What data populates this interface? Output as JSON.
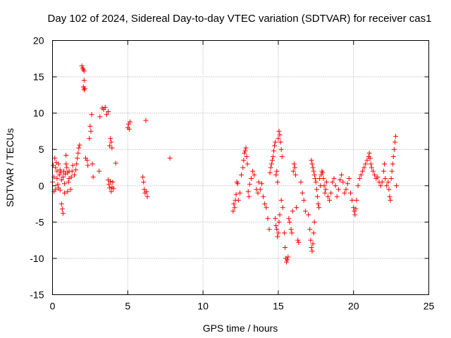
{
  "chart_data": {
    "type": "scatter",
    "title": "Day 102 of 2024, Sidereal Day-to-day VTEC variation (SDTVAR) for receiver cas1",
    "xlabel": "GPS time / hours",
    "ylabel": "SDTVAR / TECUs",
    "xlim": [
      0,
      25
    ],
    "ylim": [
      -15,
      20
    ],
    "xticks": [
      0,
      5,
      10,
      15,
      20,
      25
    ],
    "yticks": [
      -15,
      -10,
      -5,
      0,
      5,
      10,
      15,
      20
    ],
    "grid": true,
    "marker": "+",
    "color": "#ff0000",
    "series": [
      {
        "name": "SDTVAR",
        "points": [
          [
            0.0,
            0.5
          ],
          [
            0.05,
            2.8
          ],
          [
            0.1,
            1.2
          ],
          [
            0.1,
            -0.8
          ],
          [
            0.15,
            3.8
          ],
          [
            0.2,
            2.5
          ],
          [
            0.2,
            -0.5
          ],
          [
            0.25,
            3.2
          ],
          [
            0.3,
            1.0
          ],
          [
            0.3,
            2.0
          ],
          [
            0.35,
            0.2
          ],
          [
            0.4,
            -0.3
          ],
          [
            0.4,
            3.0
          ],
          [
            0.45,
            1.5
          ],
          [
            0.5,
            2.2
          ],
          [
            0.5,
            -0.6
          ],
          [
            0.55,
            1.8
          ],
          [
            0.6,
            0.8
          ],
          [
            0.6,
            -2.5
          ],
          [
            0.65,
            -3.2
          ],
          [
            0.7,
            -3.8
          ],
          [
            0.7,
            1.2
          ],
          [
            0.75,
            2.0
          ],
          [
            0.8,
            -1.0
          ],
          [
            0.8,
            0.3
          ],
          [
            0.85,
            1.6
          ],
          [
            0.9,
            3.0
          ],
          [
            0.9,
            4.2
          ],
          [
            0.95,
            2.5
          ],
          [
            1.0,
            -0.8
          ],
          [
            1.0,
            1.8
          ],
          [
            1.05,
            0.5
          ],
          [
            1.1,
            2.0
          ],
          [
            1.1,
            1.0
          ],
          [
            1.2,
            -0.5
          ],
          [
            1.25,
            1.2
          ],
          [
            1.3,
            2.0
          ],
          [
            1.35,
            2.8
          ],
          [
            1.45,
            1.5
          ],
          [
            1.55,
            2.2
          ],
          [
            1.6,
            3.0
          ],
          [
            1.65,
            3.8
          ],
          [
            1.7,
            4.5
          ],
          [
            1.75,
            5.2
          ],
          [
            1.8,
            5.6
          ],
          [
            1.95,
            16.5
          ],
          [
            2.0,
            16.2
          ],
          [
            2.05,
            16.0
          ],
          [
            2.1,
            15.8
          ],
          [
            2.1,
            14.5
          ],
          [
            2.05,
            13.6
          ],
          [
            2.1,
            13.2
          ],
          [
            2.15,
            13.4
          ],
          [
            2.2,
            3.8
          ],
          [
            2.3,
            3.5
          ],
          [
            2.35,
            2.8
          ],
          [
            2.45,
            6.5
          ],
          [
            2.5,
            8.2
          ],
          [
            2.55,
            7.5
          ],
          [
            2.6,
            9.8
          ],
          [
            2.65,
            3.0
          ],
          [
            2.7,
            1.2
          ],
          [
            3.1,
            2.0
          ],
          [
            3.15,
            9.5
          ],
          [
            3.3,
            10.7
          ],
          [
            3.4,
            10.5
          ],
          [
            3.5,
            10.8
          ],
          [
            3.6,
            9.8
          ],
          [
            3.7,
            10.2
          ],
          [
            3.8,
            5.5
          ],
          [
            3.85,
            6.5
          ],
          [
            3.9,
            6.0
          ],
          [
            3.95,
            5.2
          ],
          [
            3.7,
            0.8
          ],
          [
            3.75,
            0.2
          ],
          [
            3.8,
            -0.3
          ],
          [
            3.85,
            0.6
          ],
          [
            3.9,
            -0.8
          ],
          [
            3.95,
            -0.2
          ],
          [
            4.0,
            0.5
          ],
          [
            4.05,
            -0.4
          ],
          [
            4.2,
            3.1
          ],
          [
            5.0,
            8.0
          ],
          [
            5.05,
            8.5
          ],
          [
            5.1,
            7.8
          ],
          [
            5.15,
            8.8
          ],
          [
            6.0,
            1.2
          ],
          [
            6.05,
            0.5
          ],
          [
            6.1,
            -0.5
          ],
          [
            6.15,
            -1.0
          ],
          [
            6.2,
            9.0
          ],
          [
            6.25,
            -0.8
          ],
          [
            6.3,
            -1.5
          ],
          [
            7.8,
            3.8
          ],
          [
            12.0,
            -3.5
          ],
          [
            12.05,
            -2.5
          ],
          [
            12.1,
            -3.0
          ],
          [
            12.15,
            -2.0
          ],
          [
            12.2,
            -1.2
          ],
          [
            12.25,
            0.5
          ],
          [
            12.3,
            0.3
          ],
          [
            12.35,
            -2.0
          ],
          [
            12.45,
            -1.0
          ],
          [
            12.55,
            1.5
          ],
          [
            12.65,
            2.5
          ],
          [
            12.7,
            3.5
          ],
          [
            12.75,
            4.5
          ],
          [
            12.8,
            4.8
          ],
          [
            12.85,
            5.2
          ],
          [
            12.9,
            4.0
          ],
          [
            12.95,
            3.0
          ],
          [
            13.0,
            -0.8
          ],
          [
            13.05,
            -1.5
          ],
          [
            13.1,
            0.2
          ],
          [
            13.2,
            1.0
          ],
          [
            13.3,
            2.0
          ],
          [
            13.4,
            1.5
          ],
          [
            13.55,
            -0.5
          ],
          [
            13.65,
            -1.0
          ],
          [
            13.7,
            0.5
          ],
          [
            13.8,
            -0.5
          ],
          [
            13.9,
            0.3
          ],
          [
            14.0,
            -1.5
          ],
          [
            14.1,
            -2.5
          ],
          [
            14.2,
            -3.0
          ],
          [
            14.3,
            -4.5
          ],
          [
            14.4,
            -6.0
          ],
          [
            14.45,
            1.8
          ],
          [
            14.5,
            2.5
          ],
          [
            14.55,
            3.0
          ],
          [
            14.6,
            3.5
          ],
          [
            14.65,
            4.0
          ],
          [
            14.7,
            4.8
          ],
          [
            14.75,
            5.5
          ],
          [
            14.8,
            6.0
          ],
          [
            14.85,
            1.5
          ],
          [
            14.9,
            2.0
          ],
          [
            14.95,
            0.5
          ],
          [
            15.0,
            6.5
          ],
          [
            15.05,
            7.5
          ],
          [
            15.1,
            7.0
          ],
          [
            15.15,
            6.0
          ],
          [
            15.2,
            5.0
          ],
          [
            15.25,
            4.0
          ],
          [
            14.8,
            -4.5
          ],
          [
            14.85,
            -5.5
          ],
          [
            14.9,
            -6.0
          ],
          [
            14.95,
            -7.0
          ],
          [
            15.0,
            -6.5
          ],
          [
            15.05,
            -5.0
          ],
          [
            15.1,
            -4.0
          ],
          [
            15.2,
            -2.0
          ],
          [
            15.3,
            -3.0
          ],
          [
            15.4,
            -6.5
          ],
          [
            15.45,
            -8.5
          ],
          [
            15.5,
            -10.0
          ],
          [
            15.55,
            -10.5
          ],
          [
            15.6,
            -10.2
          ],
          [
            15.65,
            -9.8
          ],
          [
            15.7,
            -4.5
          ],
          [
            15.75,
            -5.0
          ],
          [
            15.85,
            -6.0
          ],
          [
            15.9,
            -6.5
          ],
          [
            15.95,
            -3.5
          ],
          [
            16.0,
            2.0
          ],
          [
            16.05,
            3.0
          ],
          [
            16.1,
            2.5
          ],
          [
            16.15,
            1.5
          ],
          [
            16.2,
            -3.0
          ],
          [
            16.3,
            -7.5
          ],
          [
            16.35,
            -7.8
          ],
          [
            16.5,
            0.5
          ],
          [
            16.6,
            -1.0
          ],
          [
            16.7,
            -2.0
          ],
          [
            16.8,
            -3.5
          ],
          [
            17.0,
            -4.0
          ],
          [
            17.1,
            -6.0
          ],
          [
            17.15,
            -7.5
          ],
          [
            17.2,
            -8.5
          ],
          [
            17.25,
            -9.0
          ],
          [
            17.3,
            -8.0
          ],
          [
            17.35,
            -6.5
          ],
          [
            17.4,
            -5.0
          ],
          [
            17.2,
            3.5
          ],
          [
            17.25,
            3.0
          ],
          [
            17.3,
            2.5
          ],
          [
            17.35,
            2.0
          ],
          [
            17.4,
            1.5
          ],
          [
            17.45,
            1.0
          ],
          [
            17.5,
            0.5
          ],
          [
            17.55,
            -0.5
          ],
          [
            17.6,
            -1.5
          ],
          [
            17.65,
            -2.5
          ],
          [
            17.7,
            -3.0
          ],
          [
            17.75,
            1.0
          ],
          [
            17.8,
            0.0
          ],
          [
            17.85,
            1.5
          ],
          [
            17.9,
            2.0
          ],
          [
            17.95,
            1.8
          ],
          [
            18.0,
            1.0
          ],
          [
            18.05,
            0.0
          ],
          [
            18.1,
            -1.0
          ],
          [
            18.15,
            -0.5
          ],
          [
            18.2,
            0.5
          ],
          [
            18.3,
            -1.5
          ],
          [
            18.4,
            -2.0
          ],
          [
            18.5,
            -1.0
          ],
          [
            18.6,
            0.5
          ],
          [
            18.7,
            1.0
          ],
          [
            18.8,
            0.0
          ],
          [
            18.9,
            -1.5
          ],
          [
            19.0,
            -0.5
          ],
          [
            19.1,
            0.8
          ],
          [
            19.2,
            1.5
          ],
          [
            19.3,
            0.5
          ],
          [
            19.4,
            -1.0
          ],
          [
            19.5,
            -0.5
          ],
          [
            19.6,
            0.3
          ],
          [
            19.7,
            1.0
          ],
          [
            19.8,
            -1.0
          ],
          [
            19.9,
            -2.0
          ],
          [
            20.0,
            -3.0
          ],
          [
            20.05,
            -3.5
          ],
          [
            20.1,
            -4.0
          ],
          [
            20.15,
            -3.2
          ],
          [
            20.2,
            -2.0
          ],
          [
            20.3,
            0.0
          ],
          [
            20.4,
            1.0
          ],
          [
            20.5,
            1.5
          ],
          [
            20.6,
            2.0
          ],
          [
            20.7,
            2.5
          ],
          [
            20.8,
            3.0
          ],
          [
            20.9,
            3.5
          ],
          [
            21.0,
            4.0
          ],
          [
            21.05,
            4.5
          ],
          [
            21.1,
            3.8
          ],
          [
            21.15,
            3.0
          ],
          [
            21.2,
            2.5
          ],
          [
            21.3,
            2.0
          ],
          [
            21.4,
            1.5
          ],
          [
            21.5,
            1.0
          ],
          [
            21.6,
            1.2
          ],
          [
            21.7,
            0.5
          ],
          [
            21.8,
            0.0
          ],
          [
            21.9,
            0.5
          ],
          [
            22.0,
            2.0
          ],
          [
            22.05,
            3.0
          ],
          [
            22.1,
            1.0
          ],
          [
            22.2,
            0.0
          ],
          [
            22.3,
            0.5
          ],
          [
            22.35,
            -0.5
          ],
          [
            22.4,
            -1.5
          ],
          [
            22.45,
            -2.0
          ],
          [
            22.5,
            1.0
          ],
          [
            22.55,
            2.0
          ],
          [
            22.6,
            3.0
          ],
          [
            22.65,
            4.0
          ],
          [
            22.7,
            5.0
          ],
          [
            22.75,
            6.0
          ],
          [
            22.8,
            6.8
          ],
          [
            22.85,
            0.0
          ]
        ]
      }
    ]
  }
}
